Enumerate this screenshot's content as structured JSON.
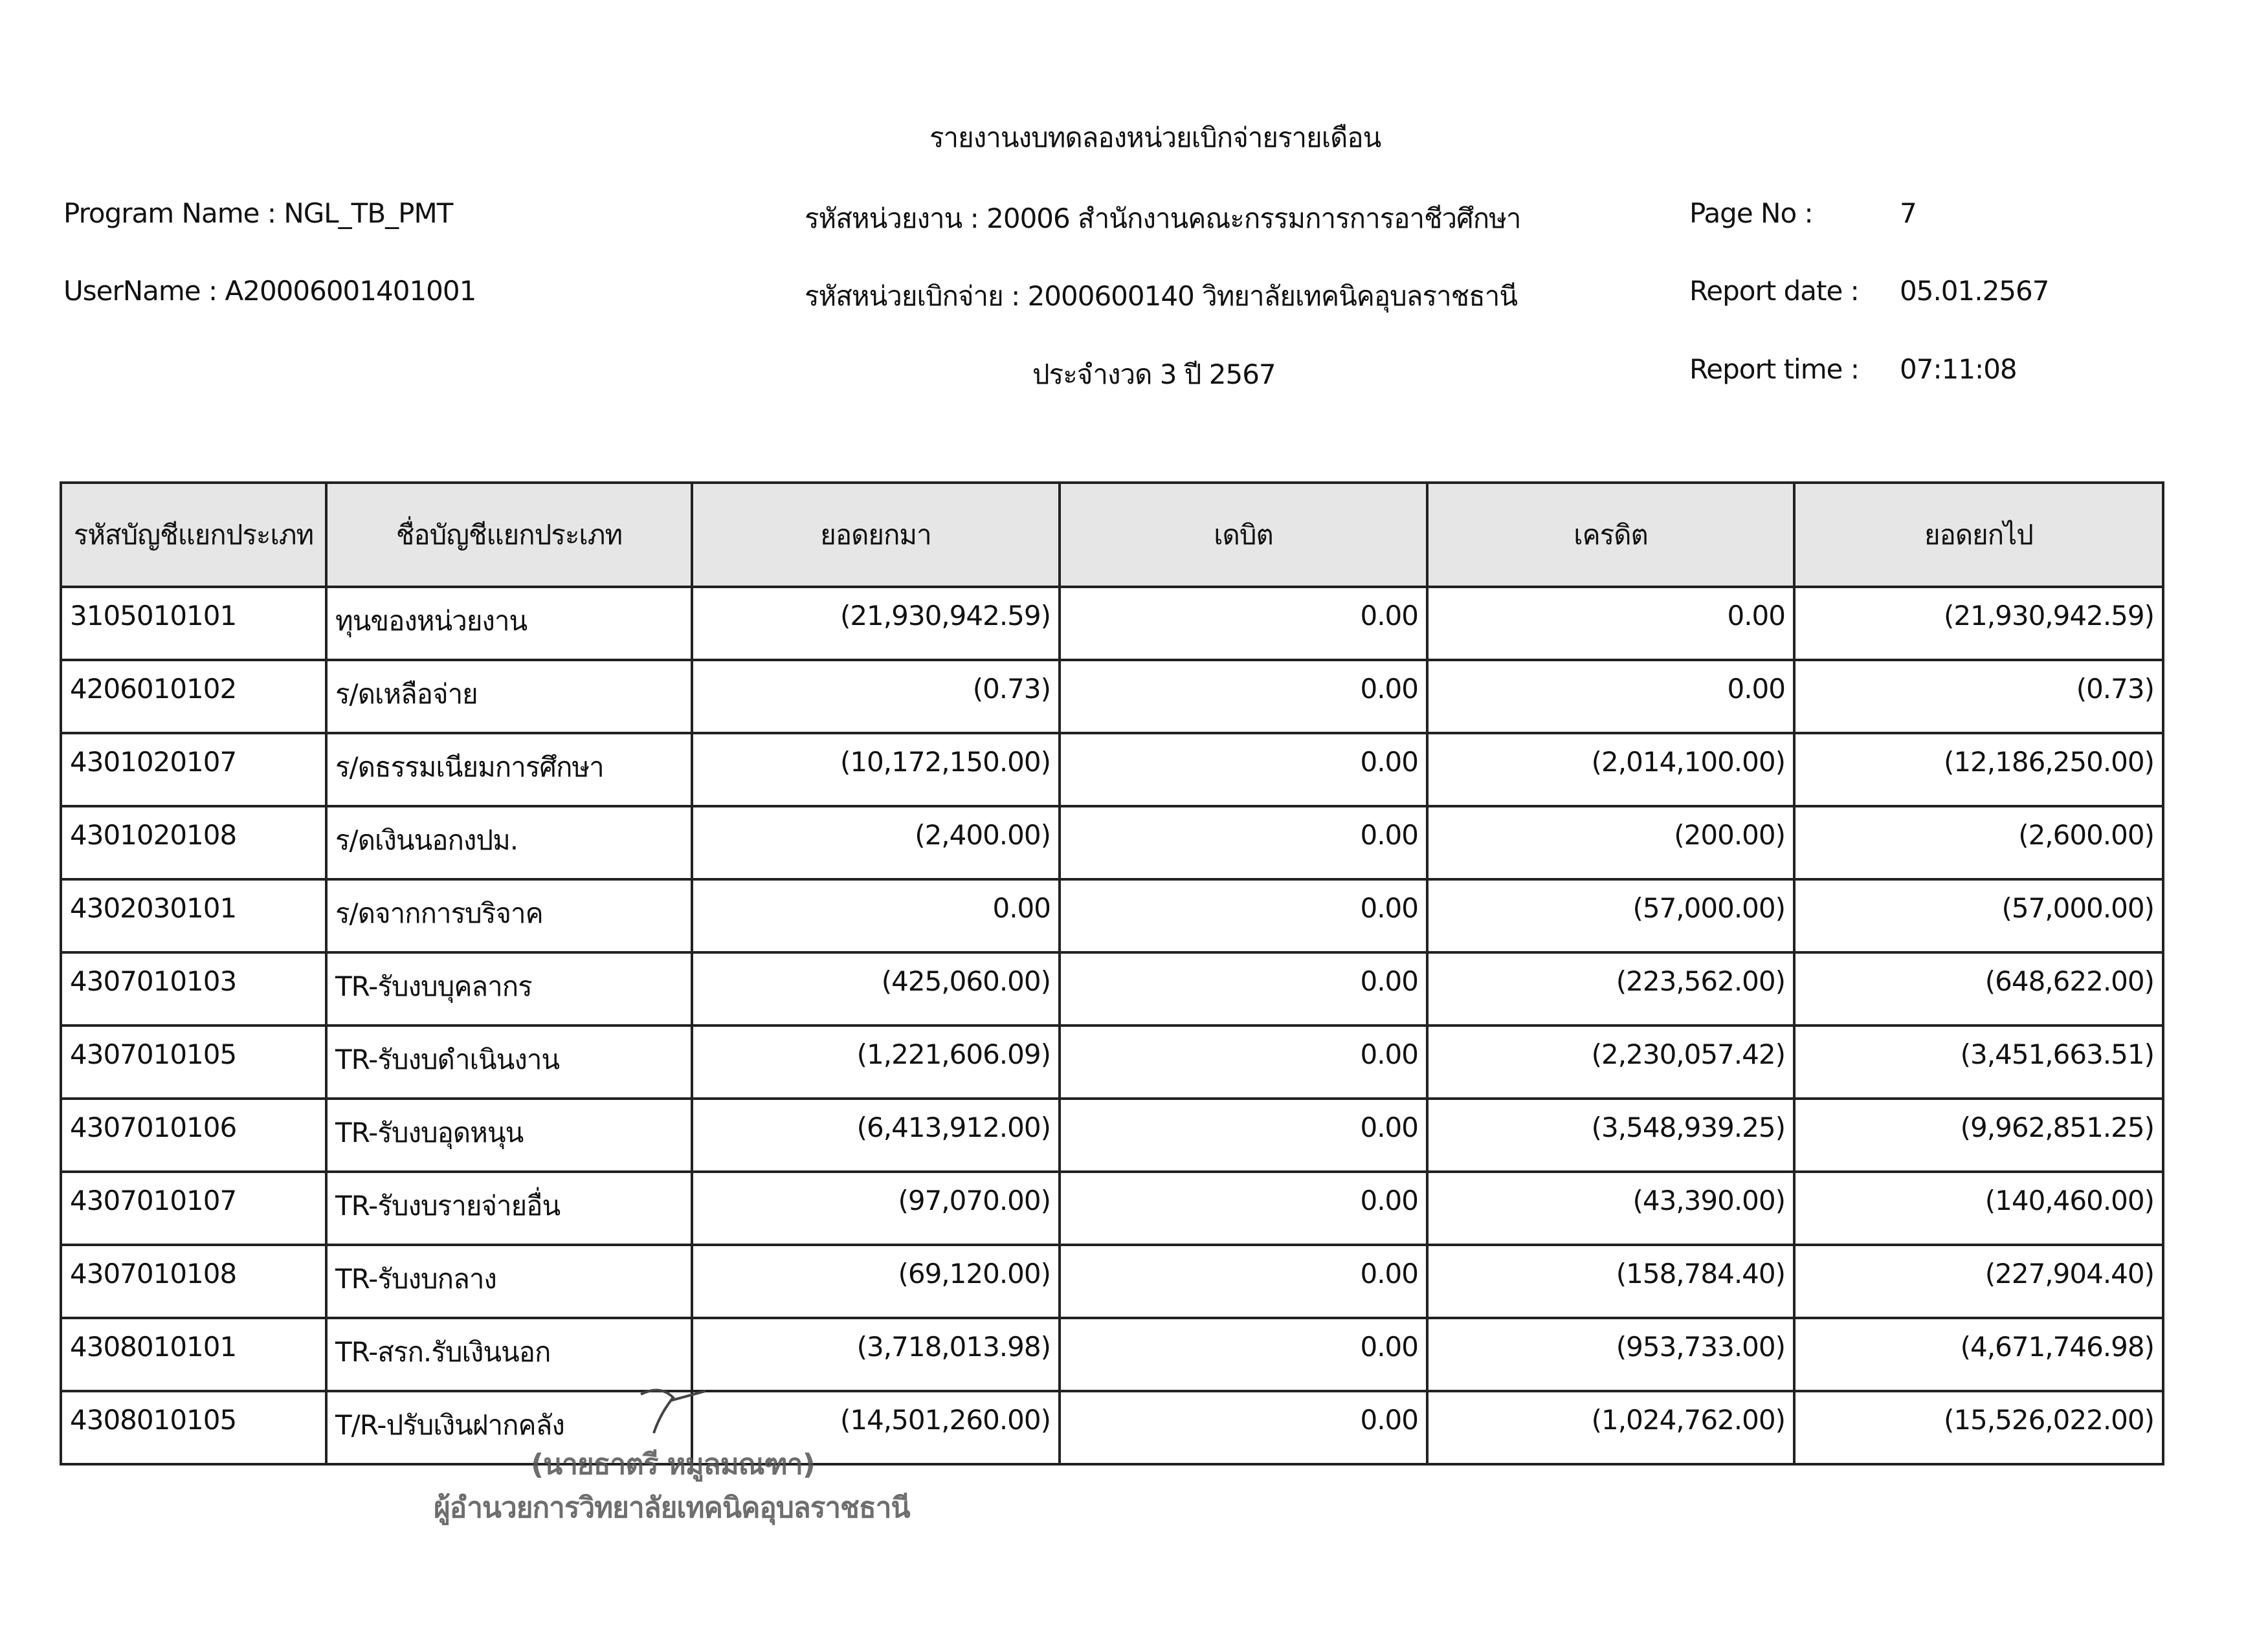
{
  "report": {
    "title": "รายงานงบทดลองหน่วยเบิกจ่ายรายเดือน",
    "program_name": "Program Name : NGL_TB_PMT",
    "user_name": "UserName : A20006001401001",
    "agency": "รหัสหน่วยงาน : 20006 สำนักงานคณะกรรมการการอาชีวศึกษา",
    "disbursing_unit": "รหัสหน่วยเบิกจ่าย : 2000600140 วิทยาลัยเทคนิคอุบลราชธานี",
    "period": "ประจำงวด 3 ปี 2567",
    "page_no_label": "Page No :",
    "page_no": "7",
    "report_date_label": "Report date :",
    "report_date": "05.01.2567",
    "report_time_label": "Report time :",
    "report_time": "07:11:08"
  },
  "table": {
    "headers": [
      "รหัสบัญชีแยกประเภท",
      "ชื่อบัญชีแยกประเภท",
      "ยอดยกมา",
      "เดบิต",
      "เครดิต",
      "ยอดยกไป"
    ],
    "rows": [
      [
        "3105010101",
        "ทุนของหน่วยงาน",
        "(21,930,942.59)",
        "0.00",
        "0.00",
        "(21,930,942.59)"
      ],
      [
        "4206010102",
        "ร/ดเหลือจ่าย",
        "(0.73)",
        "0.00",
        "0.00",
        "(0.73)"
      ],
      [
        "4301020107",
        "ร/ดธรรมเนียมการศึกษา",
        "(10,172,150.00)",
        "0.00",
        "(2,014,100.00)",
        "(12,186,250.00)"
      ],
      [
        "4301020108",
        "ร/ดเงินนอกงปม.",
        "(2,400.00)",
        "0.00",
        "(200.00)",
        "(2,600.00)"
      ],
      [
        "4302030101",
        "ร/ดจากการบริจาค",
        "0.00",
        "0.00",
        "(57,000.00)",
        "(57,000.00)"
      ],
      [
        "4307010103",
        "TR-รับงบบุคลากร",
        "(425,060.00)",
        "0.00",
        "(223,562.00)",
        "(648,622.00)"
      ],
      [
        "4307010105",
        "TR-รับงบดำเนินงาน",
        "(1,221,606.09)",
        "0.00",
        "(2,230,057.42)",
        "(3,451,663.51)"
      ],
      [
        "4307010106",
        "TR-รับงบอุดหนุน",
        "(6,413,912.00)",
        "0.00",
        "(3,548,939.25)",
        "(9,962,851.25)"
      ],
      [
        "4307010107",
        "TR-รับงบรายจ่ายอื่น",
        "(97,070.00)",
        "0.00",
        "(43,390.00)",
        "(140,460.00)"
      ],
      [
        "4307010108",
        "TR-รับงบกลาง",
        "(69,120.00)",
        "0.00",
        "(158,784.40)",
        "(227,904.40)"
      ],
      [
        "4308010101",
        "TR-สรก.รับเงินนอก",
        "(3,718,013.98)",
        "0.00",
        "(953,733.00)",
        "(4,671,746.98)"
      ],
      [
        "4308010105",
        "T/R-ปรับเงินฝากคลัง",
        "(14,501,260.00)",
        "0.00",
        "(1,024,762.00)",
        "(15,526,022.00)"
      ]
    ]
  },
  "stamp": {
    "name": "(นายธาตรี หมูลมณฑา)",
    "position": "ผู้อำนวยการวิทยาลัยเทคนิคอุบลราชธานี"
  }
}
